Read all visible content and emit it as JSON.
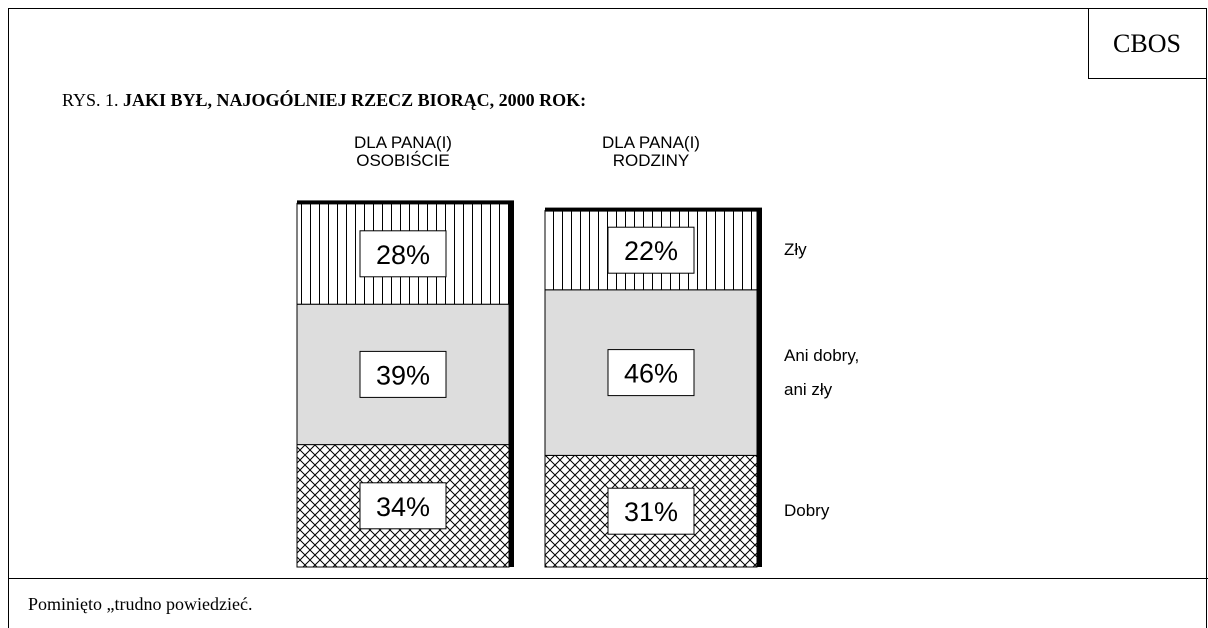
{
  "header": {
    "brand": "CBOS"
  },
  "chart_data": {
    "type": "stacked-bar",
    "figure_label": "RYS. 1.",
    "title": "JAKI BYŁ, NAJOGÓLNIEJ RZECZ BIORĄC, 2000 ROK:",
    "categories": [
      "DLA PANA(I) OSOBIŚCIE",
      "DLA PANA(I) RODZINY"
    ],
    "series": [
      {
        "name": "Dobry",
        "color": "#000000",
        "pattern": "crosshatch",
        "values": [
          34,
          31
        ],
        "value_labels": [
          "34%",
          "31%"
        ]
      },
      {
        "name": "Ani dobry, ani zły",
        "color": "#dddddd",
        "pattern": "solid",
        "values": [
          39,
          46
        ],
        "value_labels": [
          "39%",
          "46%"
        ]
      },
      {
        "name": "Zły",
        "color": "#000000",
        "pattern": "vertical",
        "values": [
          28,
          22
        ],
        "value_labels": [
          "28%",
          "22%"
        ]
      }
    ]
  },
  "footer": {
    "note": "Pominięto „trudno powiedzieć."
  }
}
